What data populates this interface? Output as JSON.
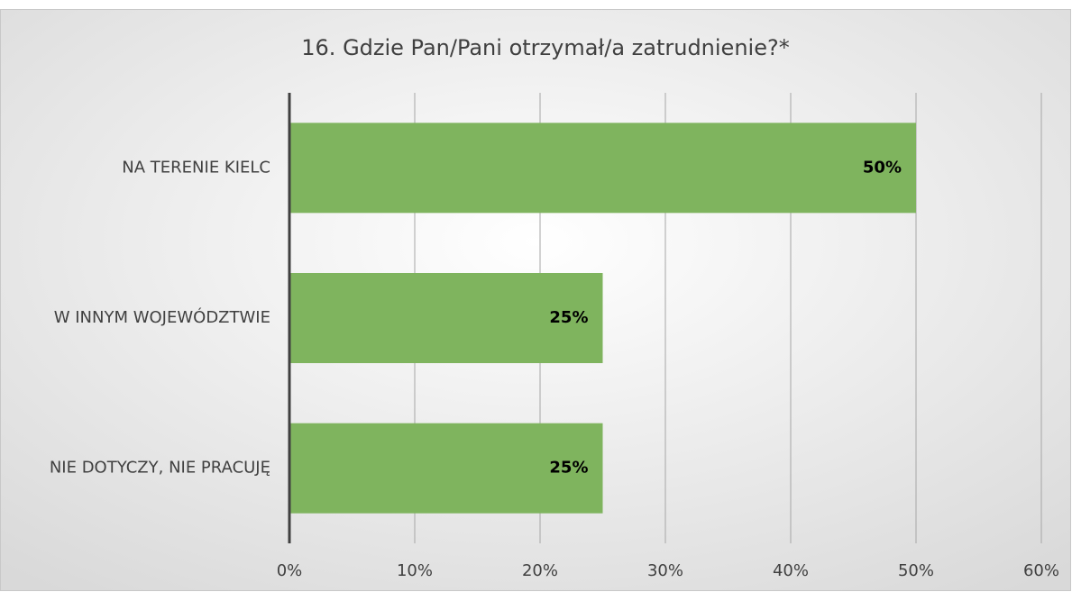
{
  "chart_data": {
    "type": "bar",
    "orientation": "horizontal",
    "title": "16. Gdzie Pan/Pani otrzymał/a zatrudnienie?*",
    "categories": [
      "NA TERENIE KIELC",
      "W INNYM WOJEWÓDZTWIE",
      "NIE DOTYCZY, NIE PRACUJĘ"
    ],
    "values": [
      50,
      25,
      25
    ],
    "value_labels": [
      "50%",
      "25%",
      "25%"
    ],
    "color": "#7fb45e",
    "xlim": [
      0,
      60
    ],
    "xticks": [
      {
        "value": 0,
        "label": "0%"
      },
      {
        "value": 10,
        "label": "10%"
      },
      {
        "value": 20,
        "label": "20%"
      },
      {
        "value": 30,
        "label": "30%"
      },
      {
        "value": 40,
        "label": "40%"
      },
      {
        "value": 50,
        "label": "50%"
      },
      {
        "value": 60,
        "label": "60%"
      }
    ],
    "grid": true
  }
}
